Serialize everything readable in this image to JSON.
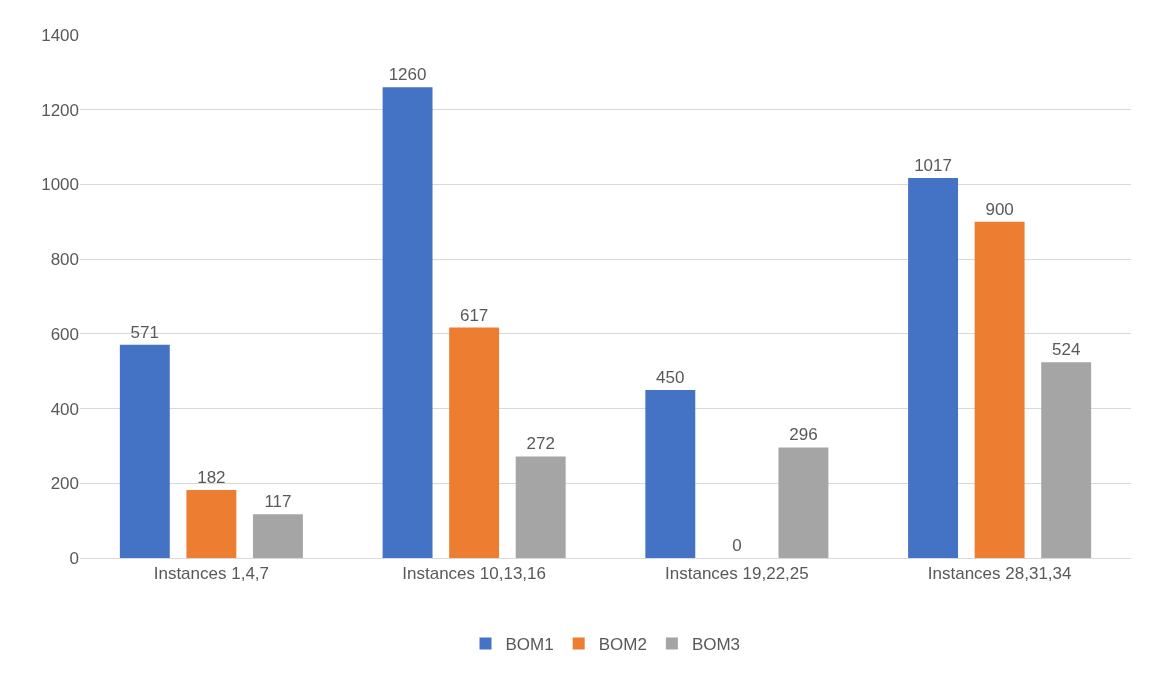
{
  "chart_data": {
    "type": "bar",
    "categories": [
      "Instances 1,4,7",
      "Instances 10,13,16",
      "Instances 19,22,25",
      "Instances 28,31,34"
    ],
    "series": [
      {
        "name": "BOM1",
        "color": "#4472c4",
        "values": [
          571,
          1260,
          450,
          1017
        ]
      },
      {
        "name": "BOM2",
        "color": "#ed7d31",
        "values": [
          182,
          617,
          0,
          900
        ]
      },
      {
        "name": "BOM3",
        "color": "#a5a5a5",
        "values": [
          117,
          272,
          296,
          524
        ]
      }
    ],
    "ylim": [
      0,
      1400
    ],
    "yticks": [
      0,
      200,
      400,
      600,
      800,
      1000,
      1200,
      1400
    ],
    "grid": "y",
    "legend": "bottom",
    "data_labels": true
  }
}
